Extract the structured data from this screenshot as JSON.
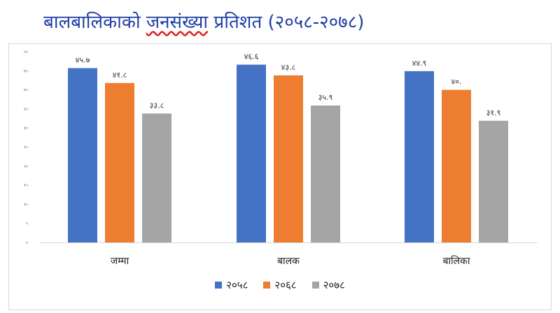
{
  "title_main": "बालबालिकाको",
  "title_underlined": "जनसंख्या",
  "title_rest": "प्रतिशत (२०५८-२०७८)",
  "chart_data": {
    "type": "bar",
    "title": "बालबालिकाको जनसंख्या प्रतिशत (२०५८-२०७८)",
    "categories": [
      "जम्मा",
      "बालक",
      "बालिका"
    ],
    "series": [
      {
        "name": "२०५८",
        "color": "#4472c4",
        "values": [
          45.7,
          46.6,
          44.9
        ],
        "labels": [
          "४५.७",
          "४६.६",
          "४४.९"
        ]
      },
      {
        "name": "२०६८",
        "color": "#ed7d31",
        "values": [
          41.8,
          43.8,
          40.0
        ],
        "labels": [
          "४१.८",
          "४३.८",
          "४०."
        ]
      },
      {
        "name": "२०७८",
        "color": "#a5a5a5",
        "values": [
          33.8,
          35.9,
          31.9
        ],
        "labels": [
          "३३.८",
          "३५.९",
          "३१.९"
        ]
      }
    ],
    "ylim": [
      0,
      50
    ],
    "yticks": [
      0,
      5,
      10,
      15,
      20,
      25,
      30,
      35,
      40,
      45,
      50
    ],
    "ytick_labels": [
      "०",
      "५",
      "१०",
      "१५",
      "२०",
      "२५",
      "३०",
      "३५",
      "४०",
      "४५",
      "५०"
    ],
    "gridlines": false,
    "legend_position": "bottom"
  }
}
